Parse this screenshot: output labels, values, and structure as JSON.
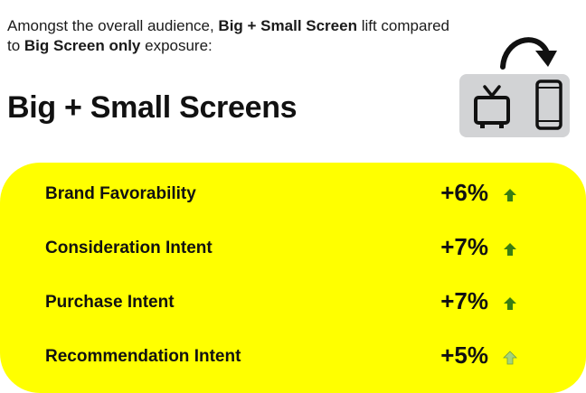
{
  "intro": {
    "part1": "Amongst the overall audience, ",
    "bold1": "Big + Small Screen",
    "part2": " lift compared to ",
    "bold2": "Big Screen only",
    "part3": " exposure:"
  },
  "heading": "Big + Small Screens",
  "icons": {
    "arrow": "curved-arrow-icon",
    "tv": "tv-icon",
    "phone": "smartphone-icon"
  },
  "colors": {
    "panel": "#ffff00",
    "device_box": "#d2d3d5",
    "arrow_dark": "#3a7d12",
    "arrow_light": "#a5d37a"
  },
  "rows": [
    {
      "label": "Brand Favorability",
      "value": "+6%",
      "arrow": "dark"
    },
    {
      "label": "Consideration Intent",
      "value": "+7%",
      "arrow": "dark"
    },
    {
      "label": "Purchase Intent",
      "value": "+7%",
      "arrow": "dark"
    },
    {
      "label": "Recommendation Intent",
      "value": "+5%",
      "arrow": "light"
    }
  ]
}
